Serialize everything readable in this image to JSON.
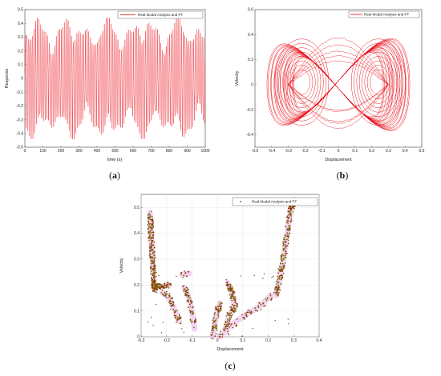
{
  "chart_data": [
    {
      "id": "a",
      "type": "line",
      "caption_letter": "a",
      "xlabel": "time (s)",
      "ylabel": "Response",
      "xlim": [
        0,
        1000
      ],
      "ylim": [
        -0.5,
        0.5
      ],
      "xticks": [
        "0",
        "100",
        "200",
        "300",
        "400",
        "500",
        "600",
        "700",
        "800",
        "900",
        "1000"
      ],
      "yticks": [
        "-0.5",
        "-0.4",
        "-0.3",
        "-0.2",
        "-0.1",
        "0",
        "0.1",
        "0.2",
        "0.3",
        "0.4",
        "0.5"
      ],
      "series": [
        {
          "name": "Real Modal Analysis and PT",
          "color": "#e8000b",
          "description_values": {
            "dominant_amplitude": [
              -0.42,
              0.42
            ],
            "oscillation_period_s": 9.5
          }
        }
      ],
      "legend_position": "top-right",
      "grid": false
    },
    {
      "id": "b",
      "type": "line",
      "caption_letter": "b",
      "xlabel": "Displacement",
      "ylabel": "Velocity",
      "xlim": [
        -0.5,
        0.5
      ],
      "ylim": [
        -0.5,
        0.6
      ],
      "xticks": [
        "-0.5",
        "-0.4",
        "-0.3",
        "-0.2",
        "-0.1",
        "0",
        "0.1",
        "0.2",
        "0.3",
        "0.4",
        "0.5"
      ],
      "yticks": [
        "-0.4",
        "-0.2",
        "0",
        "0.2",
        "0.4",
        "0.6"
      ],
      "series": [
        {
          "name": "Real Modal Analysis and PT",
          "color": "#e8000b"
        }
      ],
      "legend_position": "top-right",
      "grid": false
    },
    {
      "id": "c",
      "type": "scatter",
      "caption_letter": "c",
      "xlabel": "Displacement",
      "ylabel": "Velocity",
      "xlim": [
        -0.3,
        0.4
      ],
      "ylim": [
        0,
        0.55
      ],
      "xticks": [
        "-0.3",
        "-0.2",
        "-0.1",
        "0",
        "0.1",
        "0.2",
        "0.3",
        "0.4"
      ],
      "yticks": [
        "0",
        "0.1",
        "0.2",
        "0.3",
        "0.4",
        "0.5"
      ],
      "series": [
        {
          "name": "Real Modal Analysis and PT",
          "color": "#8b3a00",
          "highlight_color": "#e8b0e8",
          "clusters": [
            {
              "x": [
                -0.28,
                -0.24
              ],
              "y": [
                0.18,
                0.49
              ]
            },
            {
              "x": [
                -0.26,
                -0.19
              ],
              "y": [
                0.18,
                0.21
              ]
            },
            {
              "x": [
                -0.22,
                -0.14
              ],
              "y": [
                0.05,
                0.2
              ]
            },
            {
              "x": [
                -0.13,
                -0.09
              ],
              "y": [
                0.02,
                0.2
              ]
            },
            {
              "x": [
                -0.04,
                0.02
              ],
              "y": [
                0.0,
                0.13
              ]
            },
            {
              "x": [
                0.04,
                0.08
              ],
              "y": [
                0.12,
                0.22
              ]
            },
            {
              "x": [
                0.02,
                0.2
              ],
              "y": [
                0.0,
                0.17
              ]
            },
            {
              "x": [
                0.22,
                0.3
              ],
              "y": [
                0.15,
                0.53
              ]
            }
          ]
        }
      ],
      "legend_position": "top-right",
      "grid": true
    }
  ]
}
